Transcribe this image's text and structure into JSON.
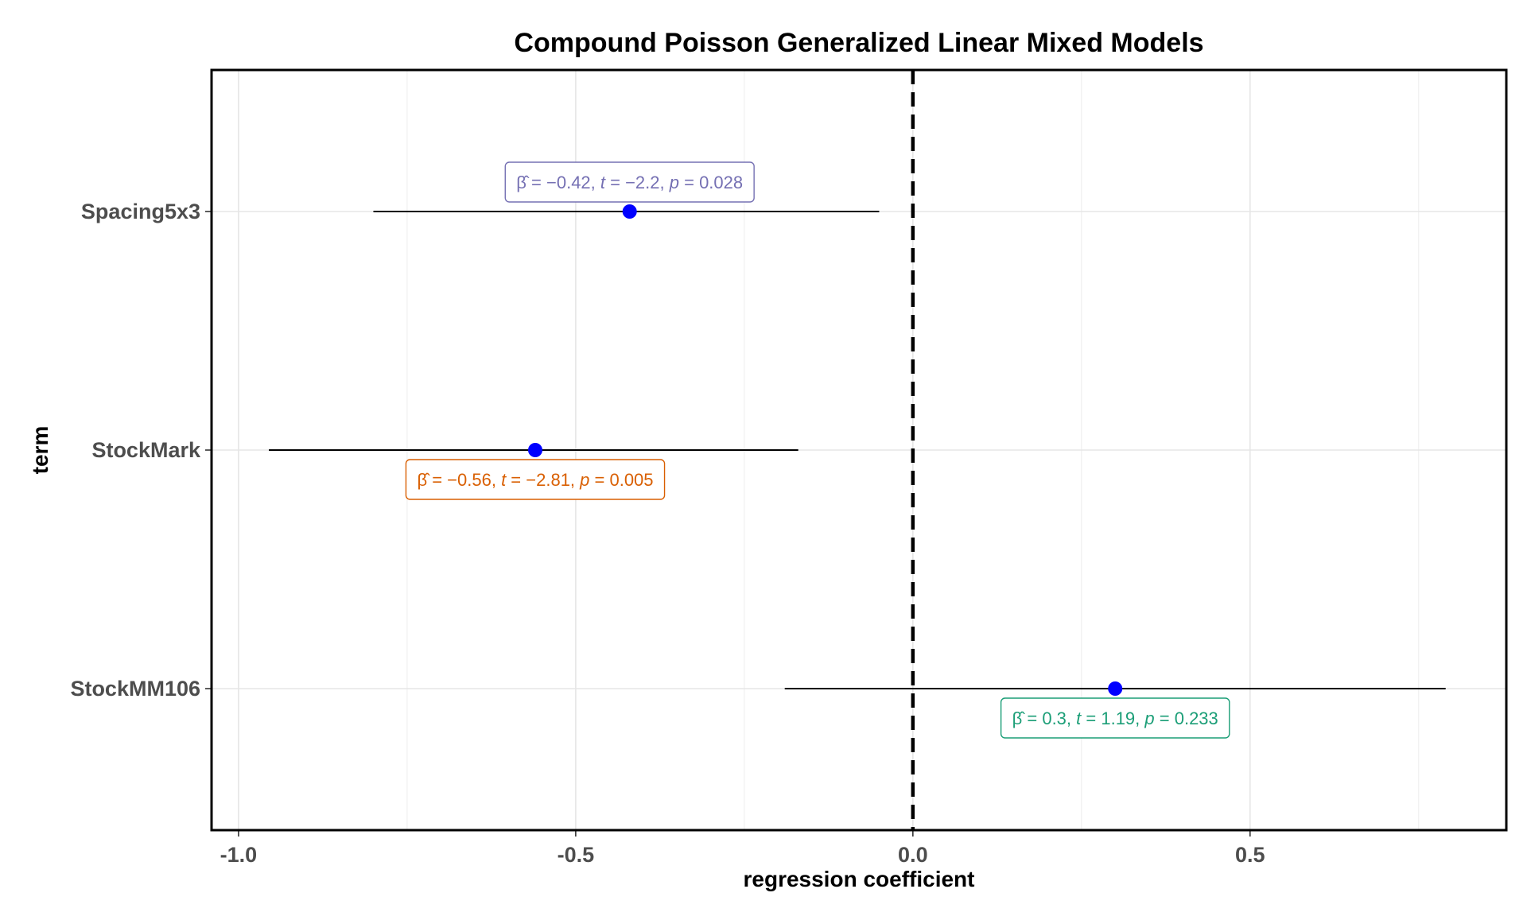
{
  "chart_data": {
    "type": "scatter",
    "subtype": "coefficient-dot-whisker",
    "title": "Compound Poisson Generalized Linear Mixed Models",
    "xlabel": "regression coefficient",
    "ylabel": "term",
    "xlim": [
      -1.04,
      0.88
    ],
    "x_ticks": [
      -1.0,
      -0.5,
      0.0,
      0.5
    ],
    "x_tick_labels": [
      "-1.0",
      "-0.5",
      "0.0",
      "0.5"
    ],
    "grid": true,
    "reference_line": {
      "x": 0,
      "style": "dashed"
    },
    "point_color": "#0000ff",
    "terms": [
      {
        "name": "Spacing5x3",
        "estimate": -0.42,
        "conf_low": -0.8,
        "conf_high": -0.05,
        "label": "β̂ = −0.42,  t = −2.2,  p = 0.028",
        "label_parts": {
          "beta": "β̂",
          "beta_val": "−0.42",
          "t": "t",
          "t_val": "−2.2",
          "p": "p",
          "p_val": "0.028"
        },
        "label_color": "#7570b3",
        "label_position": "above"
      },
      {
        "name": "StockMark",
        "estimate": -0.56,
        "conf_low": -0.955,
        "conf_high": -0.17,
        "label": "β̂ = −0.56,  t = −2.81,  p = 0.005",
        "label_parts": {
          "beta": "β̂",
          "beta_val": "−0.56",
          "t": "t",
          "t_val": "−2.81",
          "p": "p",
          "p_val": "0.005"
        },
        "label_color": "#d95f02",
        "label_position": "below"
      },
      {
        "name": "StockMM106",
        "estimate": 0.3,
        "conf_low": -0.19,
        "conf_high": 0.79,
        "label": "β̂ = 0.3,  t = 1.19,  p = 0.233",
        "label_parts": {
          "beta": "β̂",
          "beta_val": "0.3",
          "t": "t",
          "t_val": "1.19",
          "p": "p",
          "p_val": "0.233"
        },
        "label_color": "#1b9e77",
        "label_position": "below"
      }
    ]
  }
}
